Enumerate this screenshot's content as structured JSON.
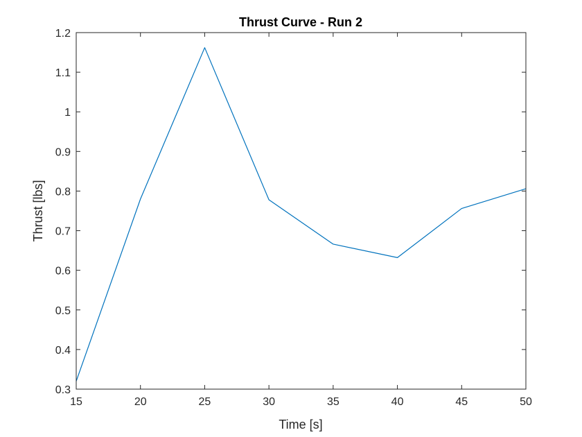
{
  "chart_data": {
    "type": "line",
    "title": "Thrust Curve - Run 2",
    "xlabel": "Time [s]",
    "ylabel": "Thrust [lbs]",
    "xlim": [
      15,
      50
    ],
    "ylim": [
      0.3,
      1.2
    ],
    "xticks": [
      15,
      20,
      25,
      30,
      35,
      40,
      45,
      50
    ],
    "yticks": [
      0.3,
      0.4,
      0.5,
      0.6,
      0.7,
      0.8,
      0.9,
      1,
      1.1,
      1.2
    ],
    "xtick_labels": [
      "15",
      "20",
      "25",
      "30",
      "35",
      "40",
      "45",
      "50"
    ],
    "ytick_labels": [
      "0.3",
      "0.4",
      "0.5",
      "0.6",
      "0.7",
      "0.8",
      "0.9",
      "1",
      "1.1",
      "1.2"
    ],
    "grid": false,
    "series": [
      {
        "color": "#0072BD",
        "x": [
          15,
          20,
          25,
          30,
          35,
          40,
          45,
          50
        ],
        "y": [
          0.32,
          0.78,
          1.162,
          0.778,
          0.666,
          0.632,
          0.756,
          0.806
        ]
      }
    ]
  }
}
